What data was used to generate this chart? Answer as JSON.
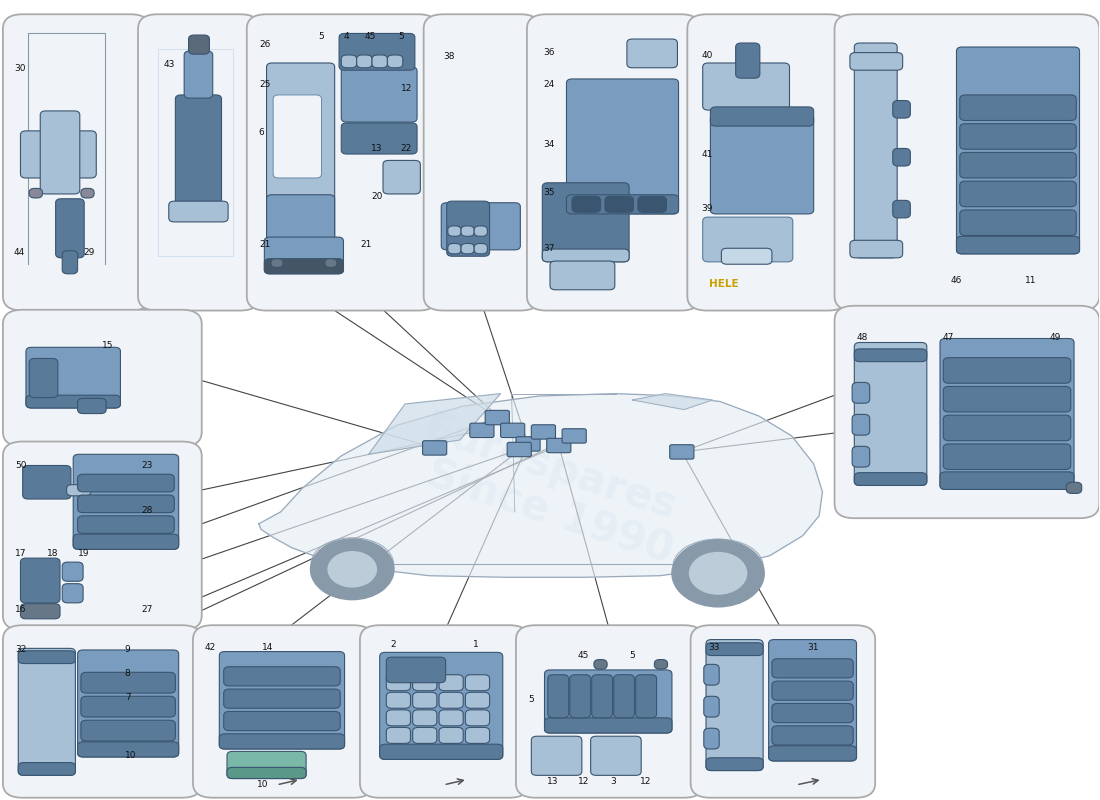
{
  "bg": "#ffffff",
  "panel_bg": "#f0f4f8",
  "panel_ec": "#aaaaaa",
  "blue1": "#7a9cbf",
  "blue2": "#5a7a9a",
  "blue3": "#a8c0d5",
  "blue4": "#c5d8e8",
  "line_c": "#555555",
  "text_c": "#111111",
  "hele_c": "#c8a000",
  "wm_c": "#d0dfe8",
  "panels": {
    "T1": [
      0.01,
      0.62,
      0.118,
      0.355
    ],
    "T2": [
      0.133,
      0.62,
      0.095,
      0.355
    ],
    "T3": [
      0.232,
      0.62,
      0.158,
      0.355
    ],
    "T4": [
      0.393,
      0.62,
      0.09,
      0.355
    ],
    "T5": [
      0.487,
      0.62,
      0.142,
      0.355
    ],
    "T6": [
      0.633,
      0.62,
      0.13,
      0.355
    ],
    "T7": [
      0.767,
      0.62,
      0.225,
      0.355
    ],
    "M1": [
      0.01,
      0.45,
      0.165,
      0.155
    ],
    "M2": [
      0.767,
      0.36,
      0.225,
      0.25
    ],
    "L1": [
      0.01,
      0.22,
      0.165,
      0.22
    ],
    "B1": [
      0.01,
      0.01,
      0.165,
      0.2
    ],
    "B2": [
      0.183,
      0.01,
      0.148,
      0.2
    ],
    "B3": [
      0.335,
      0.01,
      0.138,
      0.2
    ],
    "B4": [
      0.477,
      0.01,
      0.155,
      0.2
    ],
    "B5": [
      0.636,
      0.01,
      0.152,
      0.2
    ]
  }
}
